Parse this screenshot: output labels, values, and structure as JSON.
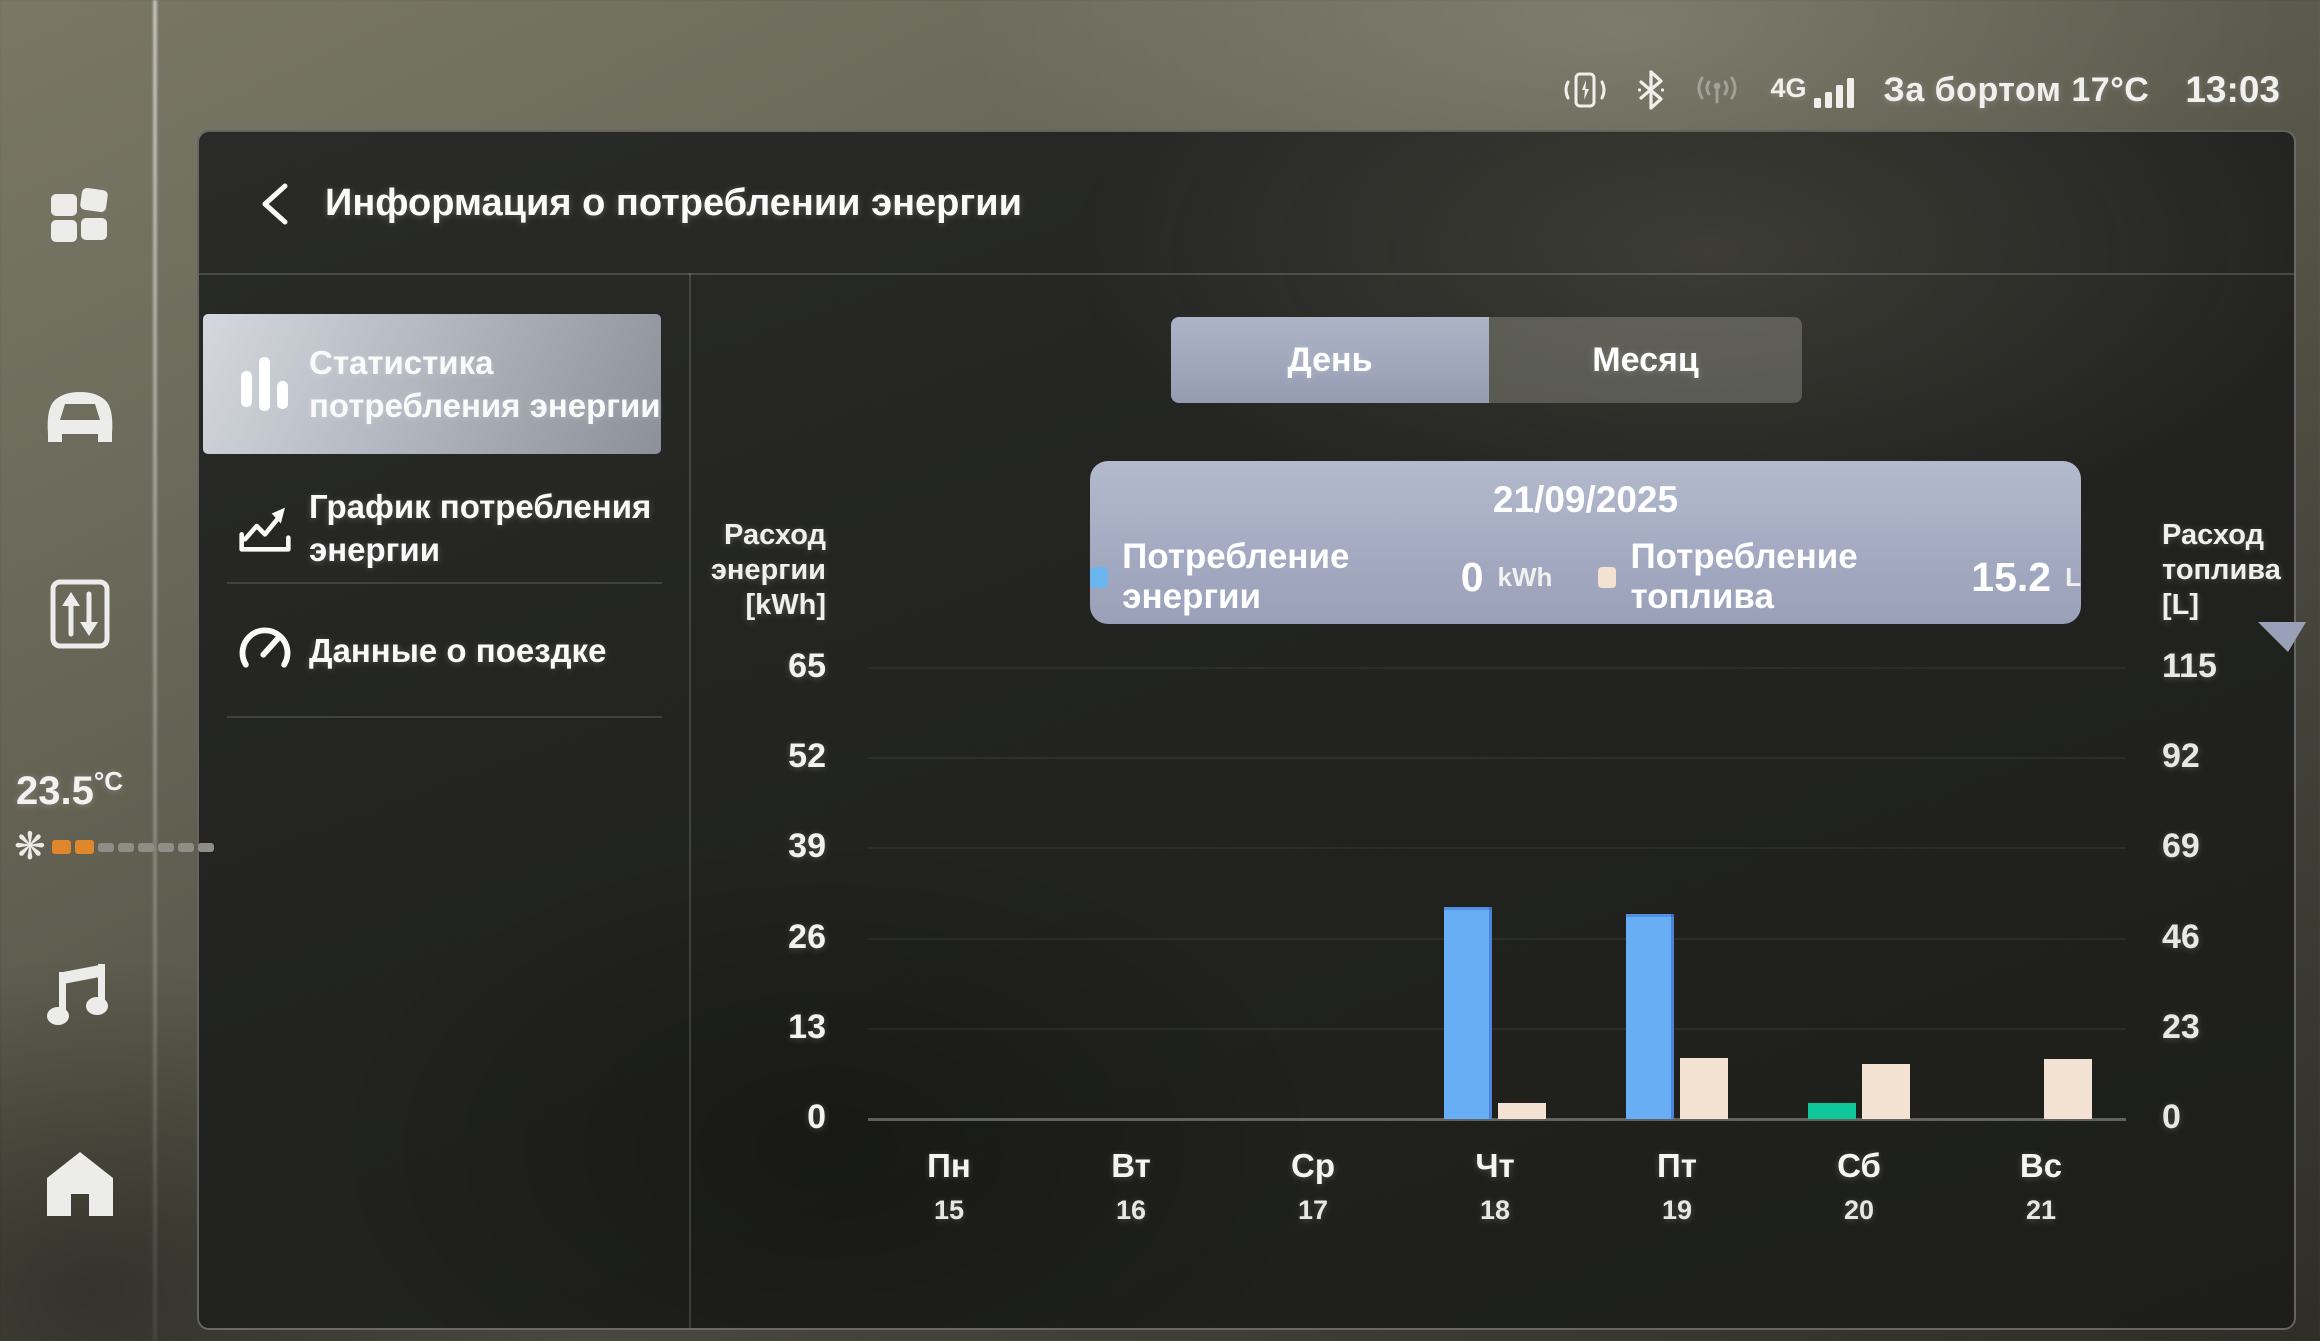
{
  "status_bar": {
    "icons": [
      "phone-charging-icon",
      "bluetooth-icon",
      "hotspot-icon",
      "signal-icon"
    ],
    "network_label": "4G",
    "outside_temp": "За бортом 17°C",
    "time": "13:03"
  },
  "header": {
    "title": "Информация о потреблении энергии"
  },
  "sidebar": {
    "icons": [
      "app-grid-icon",
      "car-icon",
      "energy-flow-icon",
      "music-icon",
      "home-icon"
    ],
    "cabin_temp_value": "23.5",
    "cabin_temp_unit": "°C",
    "fan_level": 2,
    "fan_segments_total": 8,
    "fan_active_color": "#e0872e"
  },
  "menu": {
    "items": [
      {
        "label": "Статистика потребления энергии",
        "selected": true
      },
      {
        "label": "График потребления энергии",
        "selected": false
      },
      {
        "label": "Данные о поездке",
        "selected": false
      }
    ]
  },
  "tabs": {
    "day": "День",
    "month": "Месяц",
    "selected": "День"
  },
  "tooltip": {
    "date": "21/09/2025",
    "energy": {
      "label": "Потребление энергии",
      "value": "0",
      "unit": "kWh",
      "swatch": "#6cb6f0"
    },
    "fuel": {
      "label": "Потребление топлива",
      "value": "15.2",
      "unit": "L",
      "swatch": "#f3e1d2"
    }
  },
  "chart_data": {
    "type": "bar",
    "title": "",
    "categories": [
      "Пн",
      "Вт",
      "Ср",
      "Чт",
      "Пт",
      "Сб",
      "Вс"
    ],
    "category_dates": [
      "15",
      "16",
      "17",
      "18",
      "19",
      "20",
      "21"
    ],
    "left_axis": {
      "label_lines": [
        "Расход",
        "энергии",
        "[kWh]"
      ],
      "ticks": [
        0,
        13,
        26,
        39,
        52,
        65
      ],
      "max": 65
    },
    "right_axis": {
      "label_lines": [
        "Расход",
        "топлива",
        "[L]"
      ],
      "ticks": [
        0,
        23,
        46,
        69,
        92,
        115
      ],
      "max": 115
    },
    "grid": true,
    "legend_position": "tooltip",
    "series": [
      {
        "name": "Потребление энергии",
        "unit": "kWh",
        "axis": "left",
        "slot": "left",
        "color": "#67aef4",
        "values": [
          0,
          0,
          0,
          30.5,
          29.5,
          0,
          0
        ]
      },
      {
        "name": "unlabeled-teal",
        "unit": "kWh",
        "axis": "left",
        "slot": "left",
        "color": "#10c79c",
        "values": [
          0,
          0,
          0,
          0,
          0,
          2.3,
          0
        ]
      },
      {
        "name": "Потребление топлива",
        "unit": "L",
        "axis": "right",
        "slot": "right",
        "color": "#f3e1d2",
        "values": [
          0,
          0,
          0,
          4,
          15.5,
          14,
          15.2
        ]
      }
    ]
  }
}
